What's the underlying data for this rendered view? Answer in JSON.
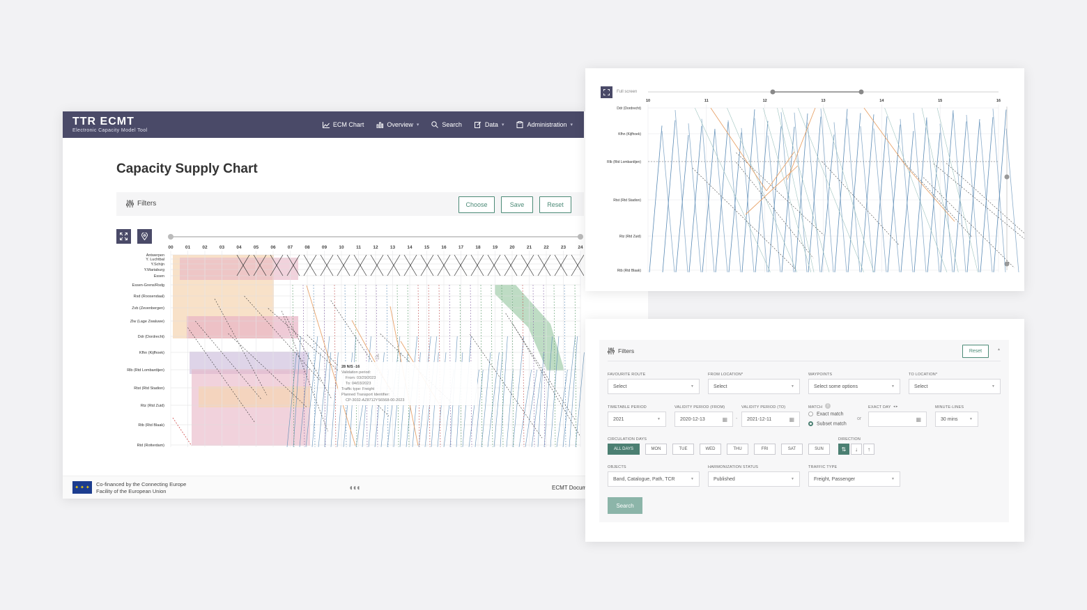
{
  "app": {
    "logo": "TTR ECMT",
    "logo_sub": "Electronic Capacity Model Tool"
  },
  "nav": {
    "ecm_chart": "ECM Chart",
    "overview": "Overview",
    "search": "Search",
    "data": "Data",
    "administration": "Administration"
  },
  "page": {
    "title": "Capacity Supply Chart"
  },
  "filters": {
    "label": "Filters",
    "choose": "Choose",
    "save": "Save",
    "reset": "Reset"
  },
  "chart": {
    "hours": [
      "00",
      "01",
      "02",
      "03",
      "04",
      "05",
      "06",
      "07",
      "08",
      "09",
      "10",
      "11",
      "12",
      "13",
      "14",
      "15",
      "16",
      "17",
      "18",
      "19",
      "20",
      "21",
      "22",
      "23",
      "24"
    ],
    "stations": [
      "Antwerpen",
      "Y. Luchtbal",
      "Y.Schijn",
      "Y.Mariaburg",
      "Essen",
      "Essen-Grens/Rsdg",
      "Rsd (Roosendaal)",
      "Zvb (Zevenbergen)",
      "Zlw (Lage Zwaluwe)",
      "Ddr (Dordrecht)",
      "Kfhn (Kijfhoek)",
      "Rlb (Rtd Lombardijen)",
      "Rtst (Rtd Stadion)",
      "Rtz (Rtd Zuid)",
      "Rtb (Rtd Blaak)",
      "Rtd (Rotterdam)"
    ]
  },
  "tooltip": {
    "title": "28 N/S -16",
    "validation": "Validation period:",
    "from": "From: 03/29/2023",
    "to": "To: 04/03/2023",
    "traffic": "Traffic type: Freight",
    "pti_label": "Planned Transport Identifier:",
    "pti": "CP-3032-AZ8712YS6568-00-2023"
  },
  "footer": {
    "cofinanced_1": "Co-financed by the Connecting Europe",
    "cofinanced_2": "Facility of the European Union",
    "doc": "ECMT Docum"
  },
  "zoom": {
    "fullscreen": "Full screen",
    "hours": [
      "10",
      "11",
      "12",
      "13",
      "14",
      "15",
      "16"
    ],
    "stations": [
      "Ddr (Dordrecht)",
      "Kfhn (Kijfhoek)",
      "Rlb (Rtd Lombardijen)",
      "Rtst (Rtd Stadion)",
      "Rtz (Rtd Zuid)",
      "Rtb (Rtd Blaak)"
    ]
  },
  "filter_form": {
    "title": "Filters",
    "reset": "Reset",
    "favourite_route": {
      "label": "FAVOURITE ROUTE",
      "value": "Select"
    },
    "from_location": {
      "label": "FROM LOCATION*",
      "value": "Select"
    },
    "waypoints": {
      "label": "WAYPOINTS",
      "value": "Select some options"
    },
    "to_location": {
      "label": "TO LOCATION*",
      "value": "Select"
    },
    "timetable_period": {
      "label": "TIMETABLE PERIOD",
      "value": "2021"
    },
    "validity_from": {
      "label": "VALIDITY PERIOD (FROM)",
      "value": "2020-12-13"
    },
    "validity_to": {
      "label": "VALIDITY PERIOD (TO)",
      "value": "2021-12-11"
    },
    "match": {
      "label": "MATCH",
      "exact": "Exact match",
      "subset": "Subset match"
    },
    "or": "or",
    "exact_day": {
      "label": "EXACT DAY",
      "value": ""
    },
    "minute_lines": {
      "label": "MINUTE-LINES",
      "value": "30 mins"
    },
    "circulation_days": {
      "label": "CIRCULATION DAYS",
      "days": [
        "ALL DAYS",
        "MON",
        "TUE",
        "WED",
        "THU",
        "FRI",
        "SAT",
        "SUN"
      ]
    },
    "direction": {
      "label": "DIRECTION"
    },
    "objects": {
      "label": "OBJECTS",
      "value": "Band, Catalogue, Path, TCR"
    },
    "harmonization": {
      "label": "HARMONIZATION STATUS",
      "value": "Published"
    },
    "traffic_type": {
      "label": "TRAFFIC TYPE",
      "value": "Freight, Passenger"
    },
    "search": "Search"
  },
  "icons": {
    "filter": "sliders-icon",
    "fullscreen": "expand-icon",
    "map": "map-pin-icon",
    "calendar": "calendar-icon"
  },
  "colors": {
    "nav_bg": "#4a4a68",
    "accent": "#4b8a76",
    "blue_path": "#5a8ab5",
    "orange_path": "#e8a36a",
    "band_peach": "#f5d4b0",
    "band_pink": "#e8b4c4",
    "band_green": "#a8d0b0"
  }
}
